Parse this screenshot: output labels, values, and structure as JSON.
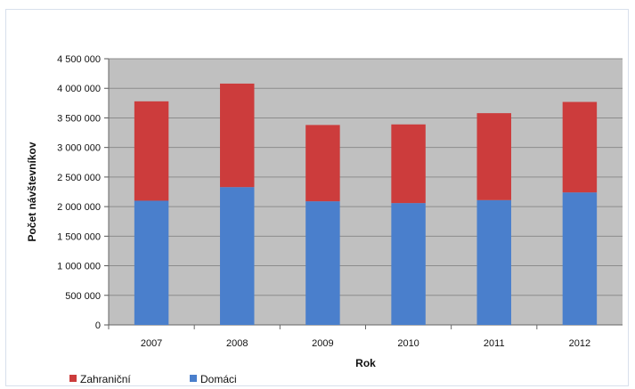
{
  "chart_data": {
    "type": "bar",
    "stacked": true,
    "categories": [
      "2007",
      "2008",
      "2009",
      "2010",
      "2011",
      "2012"
    ],
    "series": [
      {
        "name": "Domáci",
        "color": "#4a7fcc",
        "values": [
          2100000,
          2330000,
          2090000,
          2060000,
          2110000,
          2240000
        ]
      },
      {
        "name": "Zahraniční",
        "color": "#cc3c3c",
        "values": [
          1680000,
          1750000,
          1290000,
          1330000,
          1470000,
          1530000
        ]
      }
    ],
    "xlabel": "Rok",
    "ylabel": "Počet návštevníkov",
    "ylim": [
      0,
      4500000
    ],
    "ytick_labels": [
      "0",
      "500 000",
      "1 000 000",
      "1 500 000",
      "2 000 000",
      "2 500 000",
      "3 000 000",
      "3 500 000",
      "4 000 000",
      "4 500 000"
    ],
    "grid": true,
    "legend": "bottom-left",
    "plot_background": "#c0c0c0"
  }
}
